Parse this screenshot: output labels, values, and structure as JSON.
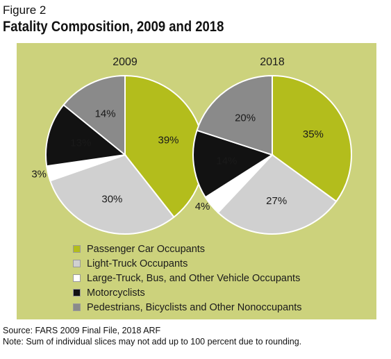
{
  "figure_label": "Figure 2",
  "title": "Fatality Composition, 2009 and 2018",
  "colors": {
    "panel_bg": "#ccd27c",
    "passenger_car": "#b3bd1c",
    "light_truck": "#d0d0d0",
    "large_truck": "#ffffff",
    "motorcyclists": "#121212",
    "pedestrians": "#8a8a8a"
  },
  "legend": [
    {
      "label": "Passenger Car Occupants",
      "color": "#b3bd1c"
    },
    {
      "label": "Light-Truck Occupants",
      "color": "#d0d0d0"
    },
    {
      "label": "Large-Truck, Bus, and Other Vehicle Occupants",
      "color": "#ffffff"
    },
    {
      "label": "Motorcyclists",
      "color": "#121212"
    },
    {
      "label": "Pedestrians, Bicyclists and Other Nonoccupants",
      "color": "#8a8a8a"
    }
  ],
  "chart_data": [
    {
      "type": "pie",
      "title": "2009",
      "categories": [
        "Passenger Car Occupants",
        "Light-Truck Occupants",
        "Large-Truck, Bus, and Other Vehicle Occupants",
        "Motorcyclists",
        "Pedestrians, Bicyclists and Other Nonoccupants"
      ],
      "values": [
        39,
        30,
        3,
        13,
        14
      ],
      "labels": [
        "39%",
        "30%",
        "3%",
        "13%",
        "14%"
      ]
    },
    {
      "type": "pie",
      "title": "2018",
      "categories": [
        "Passenger Car Occupants",
        "Light-Truck Occupants",
        "Large-Truck, Bus, and Other Vehicle Occupants",
        "Motorcyclists",
        "Pedestrians, Bicyclists and Other Nonoccupants"
      ],
      "values": [
        35,
        27,
        4,
        14,
        20
      ],
      "labels": [
        "35%",
        "27%",
        "4%",
        "14%",
        "20%"
      ]
    }
  ],
  "footer": {
    "source": "Source: FARS 2009 Final File, 2018 ARF",
    "note": "Note: Sum of individual slices may not add up to 100 percent due to rounding."
  }
}
